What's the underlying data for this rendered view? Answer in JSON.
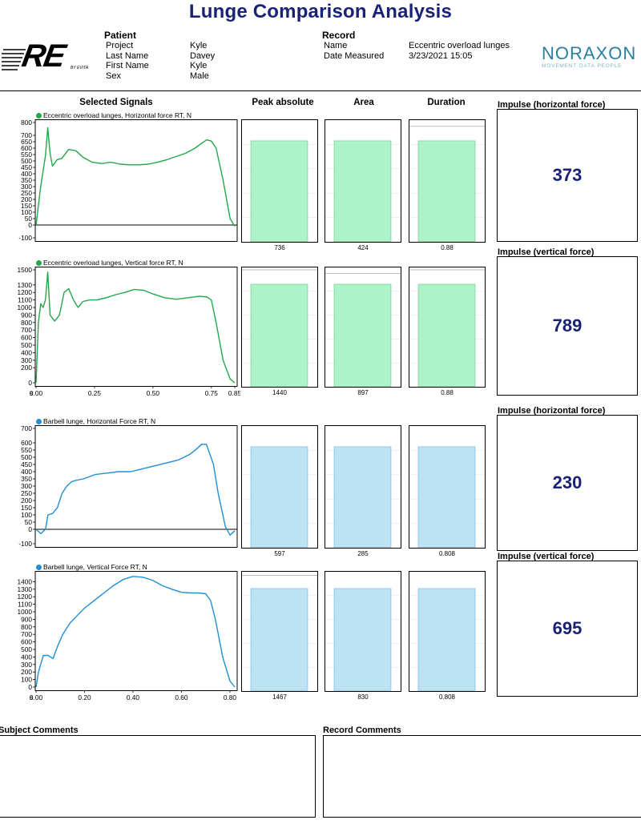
{
  "title": "Lunge Comparison Analysis",
  "logo_left": {
    "text": "RE",
    "sub": "BY EVITA"
  },
  "logo_right": {
    "name": "NORAXON",
    "tagline": "MOVEMENT·DATA·PEOPLE"
  },
  "patient": {
    "heading": "Patient",
    "labels": [
      "Project",
      "Last Name",
      "First Name",
      "Sex"
    ],
    "values": [
      "Kyle",
      "Davey",
      "Kyle",
      "Male"
    ]
  },
  "record": {
    "heading": "Record",
    "labels": [
      "Name",
      "Date Measured"
    ],
    "values": [
      "Eccentric overload lunges",
      "3/23/2021 15:05"
    ]
  },
  "columns": {
    "signals": "Selected Signals",
    "peak": "Peak absolute",
    "area": "Area",
    "duration": "Duration"
  },
  "colors": {
    "green": "#22a84a",
    "green_fill": "#adf2c8",
    "blue": "#1f8fd6",
    "blue_fill": "#bde2f3",
    "title": "#1a2277"
  },
  "chart_data": [
    {
      "type": "line",
      "signal": "Eccentric overload lunges, Horizontal force RT, N",
      "color": "green",
      "ylim": [
        -100,
        800
      ],
      "yticks": [
        800,
        700,
        650,
        600,
        550,
        500,
        450,
        400,
        350,
        300,
        250,
        200,
        150,
        100,
        50,
        0,
        -100
      ],
      "x": [
        0,
        0.02,
        0.04,
        0.05,
        0.06,
        0.07,
        0.09,
        0.11,
        0.14,
        0.17,
        0.2,
        0.24,
        0.28,
        0.32,
        0.36,
        0.4,
        0.44,
        0.48,
        0.52,
        0.56,
        0.6,
        0.64,
        0.68,
        0.71,
        0.73,
        0.75,
        0.77,
        0.8,
        0.83,
        0.85
      ],
      "y": [
        0,
        300,
        540,
        760,
        560,
        460,
        510,
        520,
        590,
        580,
        530,
        490,
        480,
        490,
        475,
        470,
        470,
        475,
        490,
        510,
        535,
        560,
        600,
        640,
        665,
        655,
        600,
        350,
        50,
        -10
      ],
      "xticks": [],
      "impulse_label": "Impulse (horizontal force)",
      "impulse": "373",
      "bars": {
        "peak": 736,
        "area": 424,
        "duration": 0.88,
        "peak_label": "736",
        "area_label": "424",
        "duration_label": "0.88",
        "fill_frac": [
          0.83,
          0.83,
          0.83
        ],
        "ref_frac": [
          null,
          null,
          0.95
        ]
      }
    },
    {
      "type": "line",
      "signal": "Eccentric overload lunges, Vertical force RT, N",
      "color": "green",
      "ylim": [
        0,
        1500
      ],
      "yticks": [
        1500,
        1300,
        1200,
        1100,
        1000,
        900,
        800,
        700,
        600,
        500,
        400,
        300,
        200,
        0
      ],
      "x": [
        0,
        0.01,
        0.02,
        0.03,
        0.04,
        0.05,
        0.06,
        0.08,
        0.1,
        0.12,
        0.14,
        0.16,
        0.18,
        0.2,
        0.23,
        0.26,
        0.3,
        0.34,
        0.38,
        0.42,
        0.46,
        0.5,
        0.55,
        0.6,
        0.65,
        0.7,
        0.73,
        0.75,
        0.77,
        0.8,
        0.83,
        0.85
      ],
      "y": [
        0,
        800,
        1050,
        1000,
        1100,
        1470,
        900,
        820,
        900,
        1200,
        1250,
        1100,
        1000,
        1080,
        1100,
        1100,
        1130,
        1170,
        1200,
        1240,
        1230,
        1180,
        1130,
        1110,
        1130,
        1150,
        1140,
        1100,
        800,
        300,
        50,
        0
      ],
      "xticks": [
        "0.00",
        "0.25",
        "0.50",
        "0.75",
        "0.85"
      ],
      "xtick_vals": [
        0,
        0.25,
        0.5,
        0.75,
        0.85
      ],
      "x_unit": "s",
      "impulse_label": "Impulse (vertical force)",
      "impulse": "789",
      "bars": {
        "peak": 1440,
        "area": 897,
        "duration": 0.88,
        "peak_label": "1440",
        "area_label": "897",
        "duration_label": "0.88",
        "fill_frac": [
          0.86,
          0.86,
          0.86
        ],
        "ref_frac": [
          0.98,
          0.95,
          0.98
        ]
      }
    },
    {
      "type": "line",
      "signal": "Barbell lunge, Horizontal Force RT, N",
      "color": "blue",
      "ylim": [
        -100,
        700
      ],
      "yticks": [
        700,
        600,
        550,
        500,
        450,
        400,
        350,
        300,
        250,
        200,
        150,
        100,
        50,
        0,
        -100
      ],
      "x": [
        0,
        0.02,
        0.04,
        0.05,
        0.07,
        0.09,
        0.11,
        0.13,
        0.15,
        0.17,
        0.2,
        0.25,
        0.3,
        0.35,
        0.4,
        0.45,
        0.5,
        0.55,
        0.6,
        0.65,
        0.68,
        0.7,
        0.72,
        0.75,
        0.77,
        0.8,
        0.82,
        0.84
      ],
      "y": [
        0,
        -30,
        0,
        100,
        110,
        150,
        250,
        300,
        330,
        340,
        350,
        380,
        390,
        400,
        400,
        420,
        440,
        460,
        480,
        520,
        560,
        590,
        590,
        450,
        250,
        20,
        -40,
        -10
      ],
      "xticks": [],
      "impulse_label": "Impulse (horizontal force)",
      "impulse": "230",
      "bars": {
        "peak": 597,
        "area": 285,
        "duration": 0.808,
        "peak_label": "597",
        "area_label": "285",
        "duration_label": "0.808",
        "fill_frac": [
          0.83,
          0.83,
          0.83
        ],
        "ref_frac": [
          null,
          null,
          null
        ]
      }
    },
    {
      "type": "line",
      "signal": "Barbell lunge, Vertical Force RT, N",
      "color": "blue",
      "ylim": [
        0,
        1500
      ],
      "yticks": [
        1400,
        1300,
        1200,
        1100,
        1000,
        900,
        800,
        700,
        600,
        500,
        400,
        300,
        200,
        100,
        0
      ],
      "x": [
        0,
        0.01,
        0.03,
        0.05,
        0.07,
        0.09,
        0.11,
        0.14,
        0.17,
        0.2,
        0.24,
        0.28,
        0.32,
        0.36,
        0.4,
        0.44,
        0.48,
        0.52,
        0.56,
        0.6,
        0.64,
        0.67,
        0.7,
        0.72,
        0.74,
        0.77,
        0.8,
        0.82
      ],
      "y": [
        0,
        200,
        420,
        420,
        380,
        550,
        700,
        850,
        950,
        1050,
        1150,
        1250,
        1350,
        1430,
        1470,
        1460,
        1420,
        1350,
        1300,
        1260,
        1250,
        1250,
        1240,
        1150,
        900,
        400,
        80,
        0
      ],
      "xticks": [
        "0.00",
        "0.20",
        "0.40",
        "0.60",
        "0.80"
      ],
      "xtick_vals": [
        0,
        0.2,
        0.4,
        0.6,
        0.8
      ],
      "x_unit": "s",
      "impulse_label": "Impulse (vertical force)",
      "impulse": "695",
      "bars": {
        "peak": 1467,
        "area": 830,
        "duration": 0.808,
        "peak_label": "1467",
        "area_label": "830",
        "duration_label": "0.808",
        "fill_frac": [
          0.86,
          0.86,
          0.86
        ],
        "ref_frac": [
          0.97,
          null,
          null
        ]
      }
    }
  ],
  "comments": {
    "subject": "Subject Comments",
    "record": "Record Comments"
  }
}
